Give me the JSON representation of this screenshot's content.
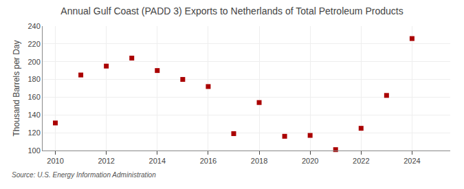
{
  "chart_data": {
    "type": "scatter",
    "title": "Annual Gulf Coast (PADD 3) Exports to Netherlands of Total Petroleum Products",
    "ylabel": "Thousand Barrels per Day",
    "source": "Source: U.S. Energy Information Administration",
    "x": [
      2010,
      2011,
      2012,
      2013,
      2014,
      2015,
      2016,
      2017,
      2018,
      2019,
      2020,
      2021,
      2022,
      2023,
      2024
    ],
    "values": [
      131,
      185,
      195,
      204,
      190,
      180,
      172,
      119,
      154,
      116,
      117,
      101,
      125,
      162,
      226
    ],
    "color": "#aa0000",
    "marker": "square",
    "xlim": [
      2009.5,
      2025.5
    ],
    "ylim": [
      100,
      240
    ],
    "xticks": [
      2010,
      2012,
      2014,
      2016,
      2018,
      2020,
      2022,
      2024
    ],
    "yticks": [
      100,
      120,
      140,
      160,
      180,
      200,
      220,
      240
    ],
    "grid": true
  }
}
